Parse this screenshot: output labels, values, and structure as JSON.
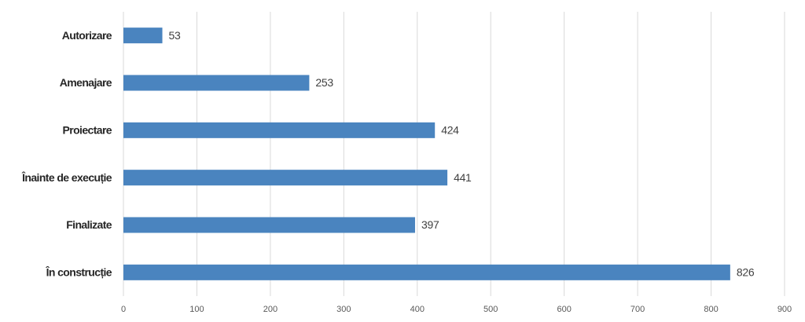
{
  "chart_data": {
    "type": "bar",
    "orientation": "horizontal",
    "categories": [
      "Autorizare",
      "Amenajare",
      "Proiectare",
      "Înainte de execuție",
      "Finalizate",
      "În construcție"
    ],
    "values": [
      53,
      253,
      424,
      441,
      397,
      826
    ],
    "color": "#4a84bf",
    "xlim": [
      0,
      900
    ],
    "xticks": [
      0,
      100,
      200,
      300,
      400,
      500,
      600,
      700,
      800,
      900
    ],
    "grid": true
  }
}
